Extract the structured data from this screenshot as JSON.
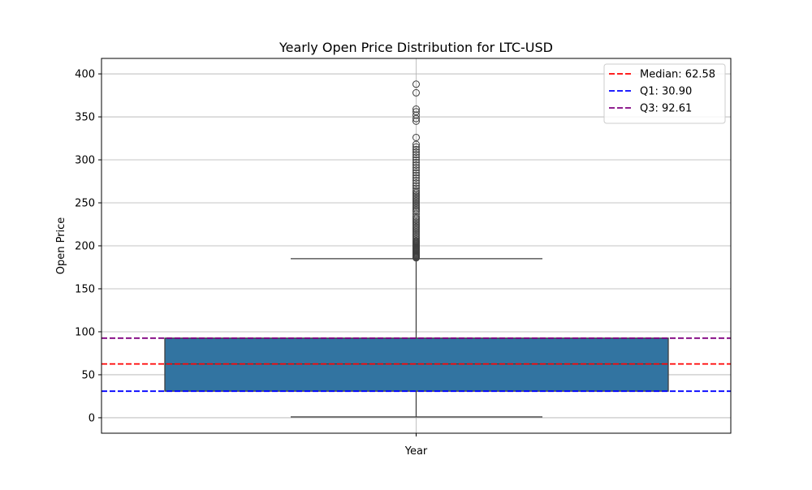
{
  "chart_data": {
    "type": "box",
    "title": "Yearly Open Price Distribution for LTC-USD",
    "xlabel": "Year",
    "ylabel": "Open Price",
    "ylim": [
      -18,
      418
    ],
    "yticks": [
      0,
      50,
      100,
      150,
      200,
      250,
      300,
      350,
      400
    ],
    "grid": true,
    "legend_position": "top-right",
    "box": {
      "whisker_low": 1,
      "q1": 30.9,
      "median": 62.58,
      "q3": 92.61,
      "whisker_high": 185,
      "fill_color": "#3274a1",
      "edge_color": "#3f3f3f",
      "outliers": [
        186,
        187,
        188,
        189,
        190,
        191,
        192,
        193,
        194,
        195,
        196,
        197,
        198,
        199,
        200,
        201,
        202,
        203,
        204,
        205,
        206,
        208,
        210,
        212,
        214,
        216,
        218,
        220,
        222,
        224,
        226,
        228,
        230,
        232,
        234,
        237,
        240,
        242,
        244,
        246,
        248,
        250,
        252,
        254,
        256,
        258,
        260,
        262,
        264,
        267,
        270,
        273,
        276,
        279,
        282,
        285,
        288,
        291,
        294,
        297,
        300,
        303,
        306,
        309,
        312,
        315,
        318,
        326,
        345,
        348,
        352,
        356,
        359,
        378,
        388
      ]
    },
    "reference_lines": [
      {
        "label": "Median: 62.58",
        "value": 62.58,
        "color": "#ff0000"
      },
      {
        "label": "Q1: 30.90",
        "value": 30.9,
        "color": "#0000ff"
      },
      {
        "label": "Q3: 92.61",
        "value": 92.61,
        "color": "#800080"
      }
    ]
  }
}
